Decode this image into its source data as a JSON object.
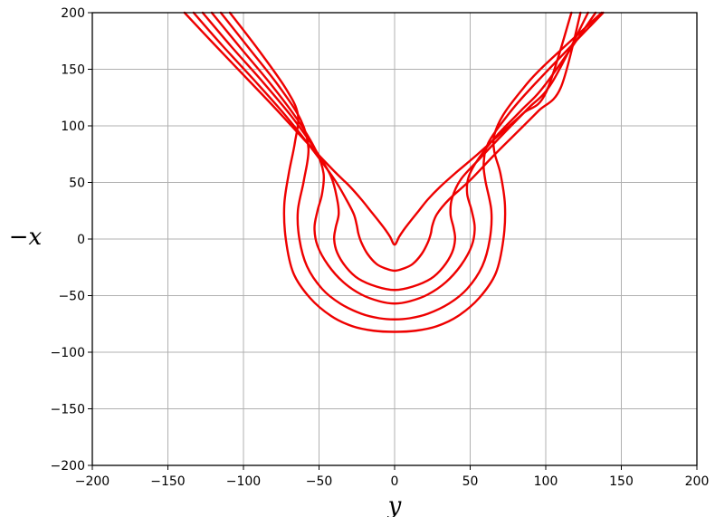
{
  "chart_data": {
    "type": "line",
    "title": "",
    "xlabel": "y",
    "ylabel": "−x",
    "xlim": [
      -200,
      200
    ],
    "ylim": [
      -200,
      200
    ],
    "grid": true,
    "line_color": "#ee0000",
    "xticks": [
      -200,
      -150,
      -100,
      -50,
      0,
      50,
      100,
      150,
      200
    ],
    "yticks": [
      -200,
      -150,
      -100,
      -50,
      0,
      50,
      100,
      150,
      200
    ],
    "xtick_labels": [
      "−200",
      "−150",
      "−100",
      "−50",
      "0",
      "50",
      "100",
      "150",
      "200"
    ],
    "ytick_labels": [
      "−200",
      "−150",
      "−100",
      "−50",
      "0",
      "50",
      "100",
      "150",
      "200"
    ],
    "series": [
      {
        "x": [
          -139,
          -120,
          -100,
          -80,
          -60,
          -40,
          -30,
          -22,
          -16,
          -10,
          -6,
          -3,
          0,
          3,
          6,
          10,
          16,
          22,
          30,
          40,
          55,
          70,
          85,
          100,
          117
        ],
        "y": [
          200,
          173,
          145,
          117,
          88,
          60,
          47,
          35,
          25,
          15,
          8,
          2,
          -5,
          2,
          8,
          15,
          25,
          35,
          46,
          58,
          75,
          93,
          111,
          129,
          200
        ]
      },
      {
        "x": [
          -133,
          -114,
          -94,
          -74,
          -56,
          -40,
          -32,
          -27,
          -25,
          -24,
          -22,
          -18,
          -12,
          -6,
          0,
          6,
          12,
          18,
          22,
          24,
          25,
          28,
          36,
          50,
          65,
          80,
          95,
          110,
          123
        ],
        "y": [
          200,
          171,
          142,
          112,
          82,
          53,
          35,
          22,
          12,
          5,
          -3,
          -13,
          -22,
          -26,
          -28,
          -26,
          -22,
          -13,
          -3,
          5,
          12,
          22,
          35,
          52,
          73,
          93,
          113,
          134,
          200
        ]
      },
      {
        "x": [
          -127,
          -108,
          -88,
          -68,
          -52,
          -42,
          -38,
          -37,
          -39,
          -40,
          -38,
          -32,
          -24,
          -12,
          0,
          12,
          24,
          32,
          38,
          40,
          39,
          37,
          38,
          44,
          57,
          72,
          88,
          104,
          128
        ],
        "y": [
          200,
          170,
          140,
          108,
          78,
          55,
          35,
          22,
          10,
          0,
          -12,
          -25,
          -35,
          -42,
          -45,
          -42,
          -35,
          -25,
          -12,
          0,
          10,
          22,
          36,
          53,
          72,
          93,
          115,
          138,
          200
        ]
      },
      {
        "x": [
          -121,
          -102,
          -82,
          -64,
          -52,
          -47,
          -48,
          -51,
          -53,
          -51,
          -44,
          -34,
          -22,
          -10,
          0,
          10,
          22,
          34,
          44,
          51,
          53,
          51,
          48,
          49,
          56,
          68,
          84,
          100,
          133
        ],
        "y": [
          200,
          169,
          137,
          105,
          78,
          58,
          40,
          25,
          10,
          -6,
          -23,
          -38,
          -49,
          -55,
          -57,
          -55,
          -49,
          -38,
          -23,
          -6,
          10,
          25,
          40,
          55,
          72,
          92,
          114,
          137,
          200
        ]
      },
      {
        "x": [
          -115,
          -96,
          -76,
          -62,
          -57,
          -60,
          -64,
          -63,
          -58,
          -48,
          -36,
          -22,
          -10,
          0,
          10,
          22,
          36,
          48,
          58,
          63,
          64,
          60,
          59,
          62,
          74,
          90,
          138
        ],
        "y": [
          200,
          168,
          134,
          105,
          80,
          52,
          25,
          0,
          -24,
          -44,
          -57,
          -66,
          -70,
          -71,
          -70,
          -66,
          -57,
          -44,
          -24,
          0,
          25,
          52,
          68,
          85,
          108,
          133,
          200
        ]
      },
      {
        "x": [
          -109,
          -90,
          -72,
          -64,
          -66,
          -70,
          -73,
          -72,
          -67,
          -56,
          -42,
          -28,
          -14,
          0,
          14,
          28,
          42,
          56,
          67,
          72,
          73,
          70,
          66,
          66,
          72,
          85,
          98,
          137
        ],
        "y": [
          200,
          167,
          133,
          110,
          85,
          58,
          30,
          0,
          -30,
          -52,
          -68,
          -77,
          -81,
          -82,
          -81,
          -77,
          -68,
          -52,
          -30,
          0,
          30,
          58,
          77,
          92,
          110,
          133,
          152,
          200
        ]
      }
    ]
  }
}
